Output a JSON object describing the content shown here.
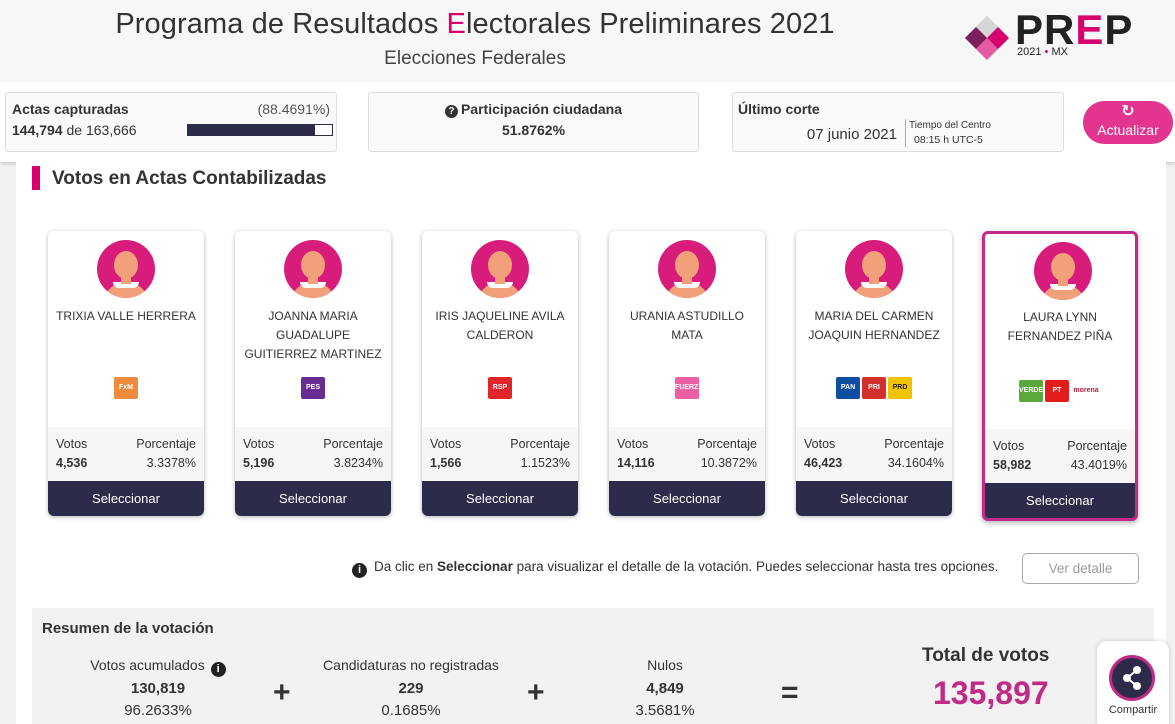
{
  "header": {
    "title_prefix": "Programa de Resultados ",
    "title_e": "E",
    "title_suffix": "lectorales Preliminares 2021",
    "subtitle": "Elecciones Federales",
    "logo": {
      "pr": "PR",
      "e": "E",
      "p": "P",
      "year": "2021",
      "dot": "•",
      "country": "MX"
    }
  },
  "stats": {
    "actas_label": "Actas capturadas",
    "actas_pct": "(88.4691%)",
    "actas_count": "144,794",
    "actas_de": " de ",
    "actas_total": "163,666",
    "actas_progress": 0.884691,
    "participacion_label": "Participación ciudadana",
    "participacion_value": "51.8762%",
    "corte_label": "Último corte",
    "corte_date": "07 junio 2021",
    "tz_label": "Tiempo del Centro",
    "tz_value": "08:15 h UTC-5",
    "update_label": "Actualizar"
  },
  "section_title": "Votos en Actas Contabilizadas",
  "card_labels": {
    "votos": "Votos",
    "porcentaje": "Porcentaje",
    "seleccionar": "Seleccionar"
  },
  "candidates": [
    {
      "name": "TRIXIA VALLE HERRERA",
      "votos": "4,536",
      "porcentaje": "3.3378%",
      "parties": [
        "fxm"
      ]
    },
    {
      "name": "JOANNA MARIA GUADALUPE GUITIERREZ MARTINEZ",
      "votos": "5,196",
      "porcentaje": "3.8234%",
      "parties": [
        "pes"
      ]
    },
    {
      "name": "IRIS JAQUELINE AVILA CALDERON",
      "votos": "1,566",
      "porcentaje": "1.1523%",
      "parties": [
        "rsp"
      ]
    },
    {
      "name": "URANIA ASTUDILLO MATA",
      "votos": "14,116",
      "porcentaje": "10.3872%",
      "parties": [
        "pm"
      ]
    },
    {
      "name": "MARIA DEL CARMEN JOAQUIN HERNANDEZ",
      "votos": "46,423",
      "porcentaje": "34.1604%",
      "parties": [
        "pan",
        "pri",
        "prd"
      ]
    },
    {
      "name": "LAURA LYNN FERNANDEZ PIÑA",
      "votos": "58,982",
      "porcentaje": "43.4019%",
      "parties": [
        "verde",
        "pt",
        "morena"
      ],
      "selected": true
    }
  ],
  "party_logos": {
    "pan": {
      "text": "PAN",
      "color": "#0b4ea2"
    },
    "pri": {
      "text": "PRI",
      "color": "#d32f2f"
    },
    "prd": {
      "text": "PRD",
      "color": "#f2c500"
    },
    "verde": {
      "text": "VERDE",
      "color": "#5aa83a"
    },
    "pt": {
      "text": "PT",
      "color": "#e21b1b"
    },
    "morena": {
      "text": "morena",
      "color": "#b41e3c"
    },
    "pes": {
      "text": "PES",
      "color": "#6b2c91"
    },
    "rsp": {
      "text": "RSP",
      "color": "#e0262c"
    },
    "pm": {
      "text": "FUERZA",
      "color": "#ec5fa7"
    },
    "fxm": {
      "text": "FxM",
      "color": "#f08a3c"
    }
  },
  "info": {
    "prefix": "Da clic en ",
    "bold": "Seleccionar",
    "suffix": " para visualizar el detalle de la votación. Puedes seleccionar hasta tres opciones.",
    "detail_button": "Ver detalle"
  },
  "summary": {
    "title": "Resumen de la votación",
    "acumulados_label": "Votos acumulados",
    "acumulados_value": "130,819",
    "acumulados_pct": "96.2633%",
    "no_reg_label": "Candidaturas no registradas",
    "no_reg_value": "229",
    "no_reg_pct": "0.1685%",
    "nulos_label": "Nulos",
    "nulos_value": "4,849",
    "nulos_pct": "3.5681%",
    "plus": "+",
    "equals": "=",
    "total_label": "Total de votos",
    "total_value": "135,897"
  },
  "share_label": "Compartir"
}
